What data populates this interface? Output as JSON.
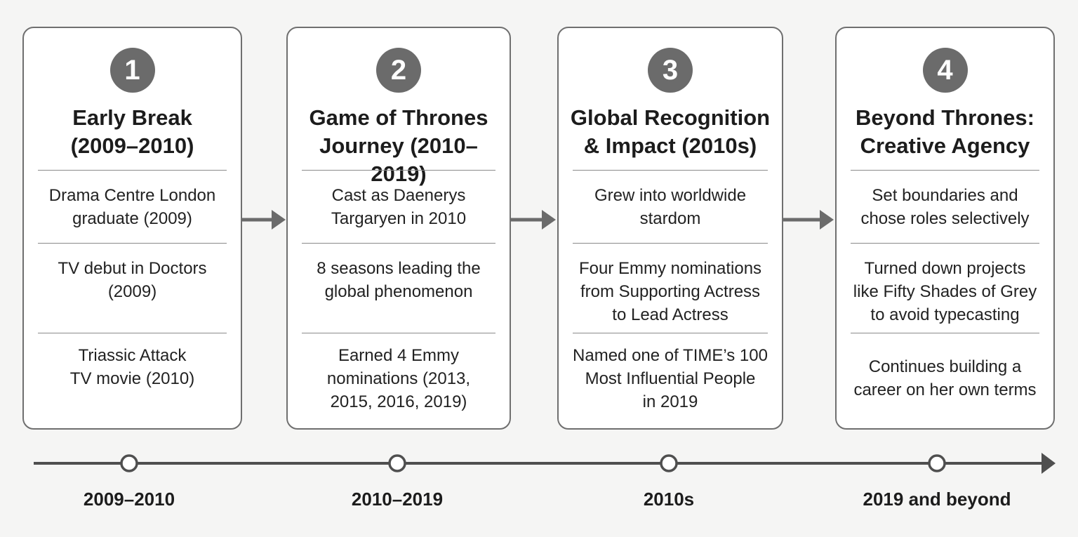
{
  "stages": [
    {
      "number": "1",
      "title": "Early Break\n(2009–2010)",
      "items": [
        "Drama Centre London\ngraduate (2009)",
        "TV debut in Doctors\n(2009)",
        "Triassic Attack\nTV movie (2010)"
      ]
    },
    {
      "number": "2",
      "title": "Game of Thrones\nJourney (2010–2019)",
      "items": [
        "Cast as Daenerys\nTargaryen in 2010",
        "8 seasons leading the\nglobal phenomenon",
        "Earned 4 Emmy\nnominations (2013,\n2015, 2016, 2019)"
      ]
    },
    {
      "number": "3",
      "title": "Global Recognition\n& Impact (2010s)",
      "items": [
        "Grew into worldwide\nstardom",
        "Four Emmy nominations\nfrom Supporting Actress\nto Lead Actress",
        "Named one of TIME’s 100\nMost Influential People\nin 2019"
      ]
    },
    {
      "number": "4",
      "title": "Beyond Thrones:\nCreative Agency",
      "items": [
        "Set boundaries and\nchose roles selectively",
        "Turned down projects\nlike Fifty Shades of Grey\nto avoid typecasting",
        "Continues building a\ncareer on her own terms"
      ]
    }
  ],
  "timeline": {
    "labels": [
      "2009–2010",
      "2010–2019",
      "2010s",
      "2019 and beyond"
    ]
  },
  "colors": {
    "badge": "#6b6b6b",
    "border": "#6f6f6f",
    "arrow": "#6b6b6b",
    "timeline": "#4f4f4f"
  }
}
